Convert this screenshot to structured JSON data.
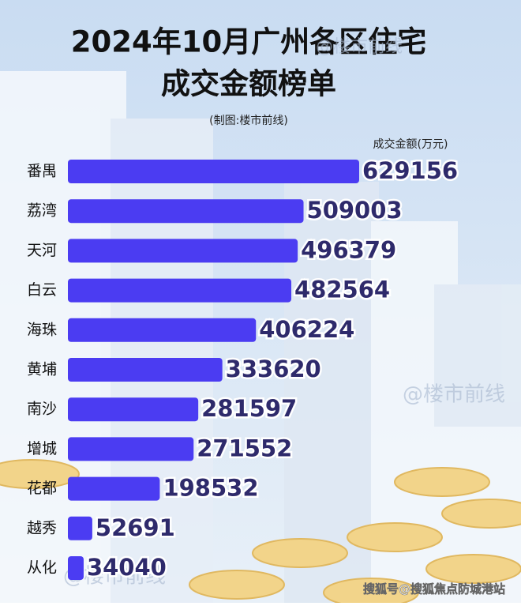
{
  "chart_data": {
    "type": "bar",
    "title": [
      "2024年10月广州各区住宅",
      "成交金额榜单"
    ],
    "subtitle": "(制图:楼市前线)",
    "value_label": "成交金额(万元)",
    "categories": [
      "番禺",
      "荔湾",
      "天河",
      "白云",
      "海珠",
      "黄埔",
      "南沙",
      "增城",
      "花都",
      "越秀",
      "从化"
    ],
    "values": [
      629156,
      509003,
      496379,
      482564,
      406224,
      333620,
      281597,
      271552,
      198532,
      52691,
      34040
    ],
    "color": "#4b3cf2",
    "watermark": "@楼市前线",
    "footer": "搜狐号@搜狐焦点防城港站"
  }
}
